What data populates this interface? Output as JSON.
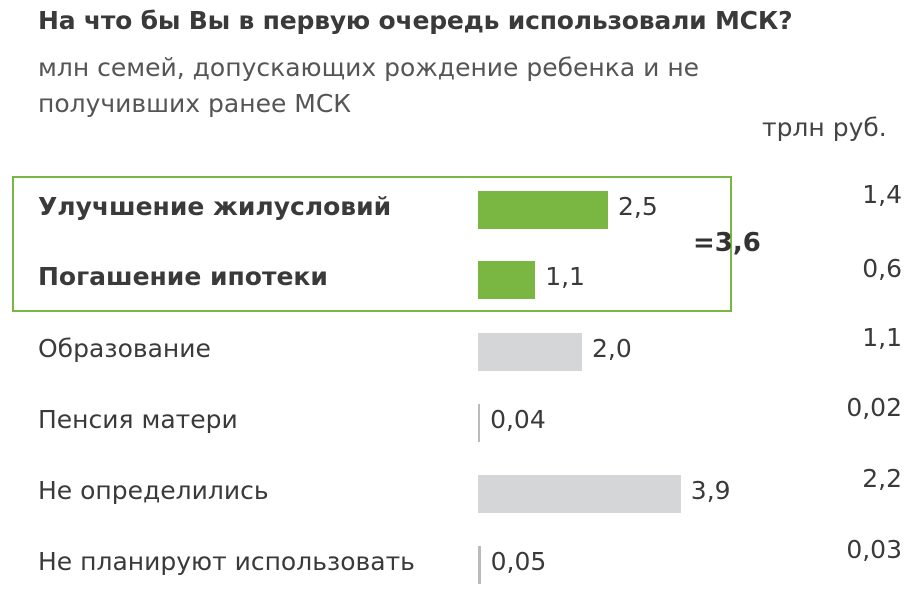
{
  "chart_data": {
    "type": "bar",
    "title": "На что бы Вы в первую очередь использовали МСК?",
    "subtitle": "млн семей, допускающих рождение ребенка и не получивших ранее МСК",
    "secondary_unit": "трлн руб.",
    "categories": [
      "Улучшение жилусловий",
      "Погашение ипотеки",
      "Образование",
      "Пенсия матери",
      "Не определились",
      "Не планируют использовать"
    ],
    "values": [
      2.5,
      1.1,
      2.0,
      0.04,
      3.9,
      0.05
    ],
    "value_labels": [
      "2,5",
      "1,1",
      "2,0",
      "0,04",
      "3,9",
      "0,05"
    ],
    "secondary_values": [
      1.4,
      0.6,
      1.1,
      0.02,
      2.2,
      0.03
    ],
    "secondary_labels": [
      "1,4",
      "0,6",
      "1,1",
      "0,02",
      "2,2",
      "0,03"
    ],
    "highlighted": [
      true,
      true,
      false,
      false,
      false,
      false
    ],
    "highlight_total": "=3,6",
    "colors": {
      "highlight": "#7ab742",
      "normal": "#d4d6d8",
      "box": "#7ab742"
    },
    "grid": false,
    "legend": "none"
  }
}
